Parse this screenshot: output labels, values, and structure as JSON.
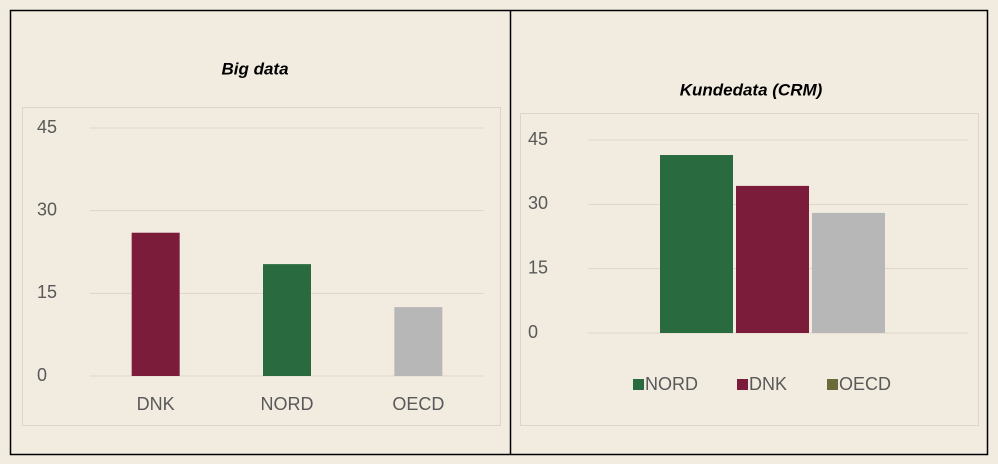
{
  "chart_data": [
    {
      "type": "bar",
      "title": "Big data",
      "categories": [
        "DNK",
        "NORD",
        "OECD"
      ],
      "values": [
        26,
        20.3,
        12.5
      ],
      "colors": [
        "#7b1c3a",
        "#2a6a3f",
        "#b7b7b7"
      ],
      "ylim": [
        0,
        45
      ],
      "yticks": [
        0,
        15,
        30,
        45
      ],
      "grid": true
    },
    {
      "type": "grouped_bar",
      "title": "Kundedata (CRM)",
      "categories": [
        null
      ],
      "series": [
        {
          "name": "NORD",
          "color": "#2a6a3f",
          "legend_color": "#2a6a3f",
          "values": [
            41.5
          ]
        },
        {
          "name": "DNK",
          "color": "#7b1c3a",
          "legend_color": "#7b1c3a",
          "values": [
            34.3
          ]
        },
        {
          "name": "OECD",
          "color": "#b7b7b7",
          "legend_color": "#6b6a3a",
          "values": [
            28
          ]
        }
      ],
      "ylim": [
        0,
        45
      ],
      "yticks": [
        0,
        15,
        30,
        45
      ],
      "grid": true,
      "legend": "bottom"
    }
  ]
}
